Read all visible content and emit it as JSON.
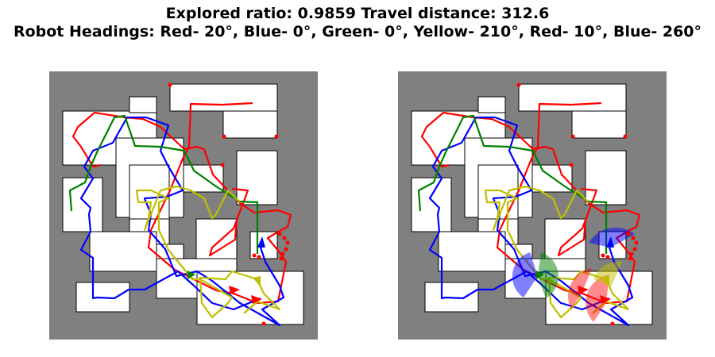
{
  "figure": {
    "title_line1": "Explored ratio: 0.9859  Travel distance: 312.6",
    "title_line2": "Robot Headings: Red- 20°, Blue- 0°, Green- 0°, Yellow- 210°, Red- 10°, Blue- 260°"
  },
  "colors": {
    "wall": "#808080",
    "free": "#ffffff",
    "robot_red": "#ff0000",
    "robot_blue": "#0000ff",
    "robot_green": "#008000",
    "robot_yellow": "#bfbf00"
  },
  "panels": [
    "exploration-map-left",
    "exploration-map-right-with-fov"
  ]
}
